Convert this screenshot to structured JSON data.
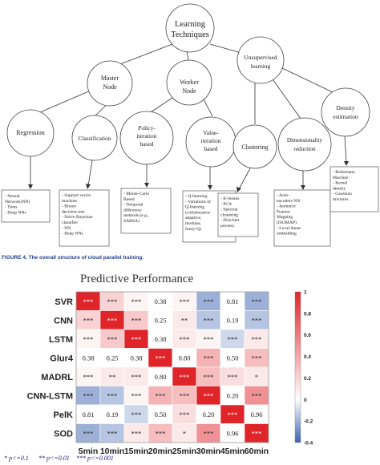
{
  "tree": {
    "root": [
      "Learning",
      "Techniques"
    ],
    "level1": {
      "master": [
        "Master",
        "Node"
      ],
      "worker": [
        "Worker",
        "Node"
      ],
      "unsupervised": [
        "Unsupervised",
        "learning"
      ]
    },
    "level2": {
      "regression": [
        "Regression"
      ],
      "classification": [
        "Classification"
      ],
      "policy": [
        "Policy-",
        "iteration",
        "based"
      ],
      "value": [
        "Value-",
        "iteration",
        "based"
      ],
      "clustering": [
        "Clustering"
      ],
      "dimred": [
        "Dimensionality",
        "reduction"
      ],
      "density": [
        "Density",
        "estimation"
      ]
    },
    "leaves": {
      "regression": [
        "- Neural",
        "Network(NN)",
        "- Trees",
        "- Deep NNs"
      ],
      "classification": [
        "- Support vector",
        "machine",
        "- Binary",
        "decision tree",
        "- Naïve Bayesian",
        "classifier",
        "- NN",
        "- Deep NNs"
      ],
      "policy": [
        "- Monte-Carlo",
        "Based",
        "- Temporal",
        "difference",
        "methods (e.g.,",
        "SARSA)"
      ],
      "value": [
        "- Q-learning",
        "- Variations of",
        "Q-learning",
        "(collaborative",
        "adaptive,",
        "modular,",
        "fuzzy-Q)"
      ],
      "clustering": [
        "- K-means",
        "- PCA",
        "- Spectral",
        "clustering",
        "- Dirichlet",
        "process"
      ],
      "dimred": [
        "- Auto-",
        "encoders NN",
        "- Isometric",
        "Feature",
        "Mapping",
        "(ISOMAP)",
        "- Local linear",
        "embedding"
      ],
      "density": [
        "- Boltzmann",
        "Machine",
        "- Kernel",
        "density",
        "- Gaussian",
        "mixtures"
      ]
    }
  },
  "caption": {
    "label": "FIGURE 4.",
    "text": "The overall structure of cloud parallel training."
  },
  "chart_data": {
    "type": "heatmap",
    "title": "Predictive Performance",
    "rows": [
      "SVR",
      "CNN",
      "LSTM",
      "Glur4",
      "MADRL",
      "CNN-LSTM",
      "PelK",
      "SOD"
    ],
    "columns": [
      "5min",
      "10min",
      "15min",
      "20min",
      "25min",
      "30min",
      "45min",
      "60min"
    ],
    "labels": [
      [
        "***",
        "***",
        "***",
        "0.38",
        "***",
        "***",
        "0.81",
        "***"
      ],
      [
        "***",
        "***",
        "***",
        "0.25",
        "**",
        "***",
        "0.19",
        "***"
      ],
      [
        "***",
        "***",
        "***",
        "0.38",
        "***",
        "***",
        "***",
        "***"
      ],
      [
        "0.38",
        "0.25",
        "0.38",
        "***",
        "0.80",
        "***",
        "0.50",
        "***"
      ],
      [
        "***",
        "**",
        "***",
        "0.80",
        "***",
        "***",
        "***",
        "*"
      ],
      [
        "***",
        "***",
        "***",
        "***",
        "***",
        "***",
        "0.20",
        "***"
      ],
      [
        "0.81",
        "0.19",
        "***",
        "0.50",
        "***",
        "0.20",
        "***",
        "0.96"
      ],
      [
        "***",
        "***",
        "***",
        "***",
        "*",
        "***",
        "0.96",
        "***"
      ]
    ],
    "values": [
      [
        1.0,
        0.2,
        0.05,
        0.0,
        0.05,
        -0.2,
        0.0,
        -0.2
      ],
      [
        0.2,
        1.0,
        0.25,
        0.0,
        0.1,
        -0.15,
        0.0,
        -0.15
      ],
      [
        0.05,
        0.25,
        1.0,
        0.0,
        0.1,
        0.05,
        -0.1,
        0.1
      ],
      [
        0.0,
        0.0,
        0.0,
        1.0,
        0.0,
        0.35,
        0.0,
        0.3
      ],
      [
        0.05,
        0.1,
        0.1,
        0.0,
        1.0,
        0.3,
        0.15,
        0.1
      ],
      [
        -0.2,
        -0.15,
        0.05,
        0.35,
        0.3,
        1.0,
        0.0,
        0.5
      ],
      [
        0.0,
        0.0,
        -0.1,
        0.0,
        0.15,
        0.0,
        1.0,
        0.0
      ],
      [
        -0.2,
        -0.15,
        0.1,
        0.3,
        0.1,
        0.5,
        0.0,
        1.0
      ]
    ],
    "colorbar": {
      "ticks": [
        "1",
        "0.8",
        "0.6",
        "0.4",
        "0.2",
        "0",
        "-0.2",
        "-0.4"
      ],
      "min": -0.4,
      "max": 1.0,
      "colors": {
        "negative": "#3b63b0",
        "zero": "#ffffff",
        "positive": "#e0252a"
      }
    },
    "legend": [
      "* p<=0.1",
      "** p<=0.01",
      "*** p<=0.001"
    ]
  }
}
